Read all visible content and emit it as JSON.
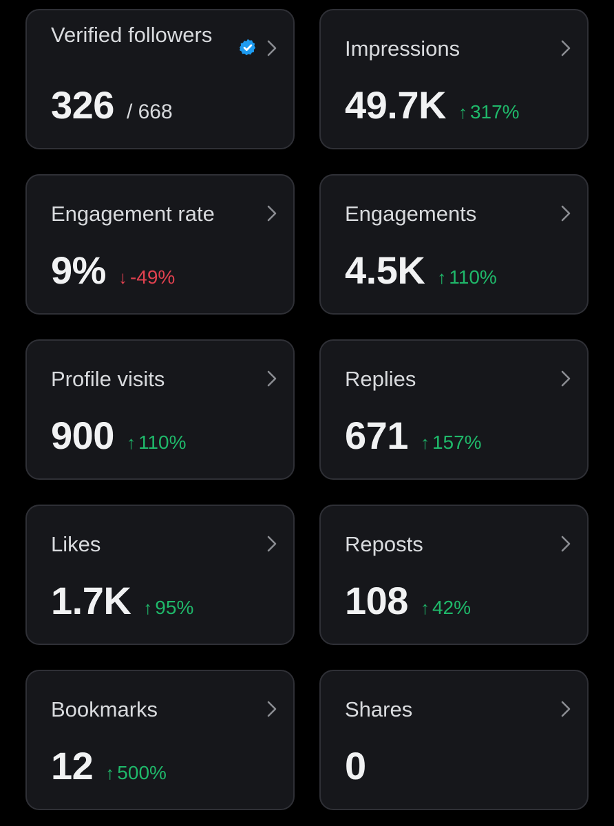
{
  "colors": {
    "background": "#000000",
    "card": "#16171b",
    "card_border": "#2f3036",
    "positive": "#1fb86a",
    "negative": "#e0414f",
    "verified_badge": "#1d9bf0"
  },
  "cards": [
    {
      "title": "Verified followers",
      "value": "326",
      "total": "/ 668",
      "verified": true,
      "change": null
    },
    {
      "title": "Impressions",
      "value": "49.7K",
      "change": {
        "direction": "up",
        "arrow": "↑",
        "text": "317%"
      }
    },
    {
      "title": "Engagement rate",
      "value": "9%",
      "change": {
        "direction": "down",
        "arrow": "↓",
        "text": "-49%"
      }
    },
    {
      "title": "Engagements",
      "value": "4.5K",
      "change": {
        "direction": "up",
        "arrow": "↑",
        "text": "110%"
      }
    },
    {
      "title": "Profile visits",
      "value": "900",
      "change": {
        "direction": "up",
        "arrow": "↑",
        "text": "110%"
      }
    },
    {
      "title": "Replies",
      "value": "671",
      "change": {
        "direction": "up",
        "arrow": "↑",
        "text": "157%"
      }
    },
    {
      "title": "Likes",
      "value": "1.7K",
      "change": {
        "direction": "up",
        "arrow": "↑",
        "text": "95%"
      }
    },
    {
      "title": "Reposts",
      "value": "108",
      "change": {
        "direction": "up",
        "arrow": "↑",
        "text": "42%"
      }
    },
    {
      "title": "Bookmarks",
      "value": "12",
      "change": {
        "direction": "up",
        "arrow": "↑",
        "text": "500%"
      }
    },
    {
      "title": "Shares",
      "value": "0",
      "change": null
    }
  ]
}
